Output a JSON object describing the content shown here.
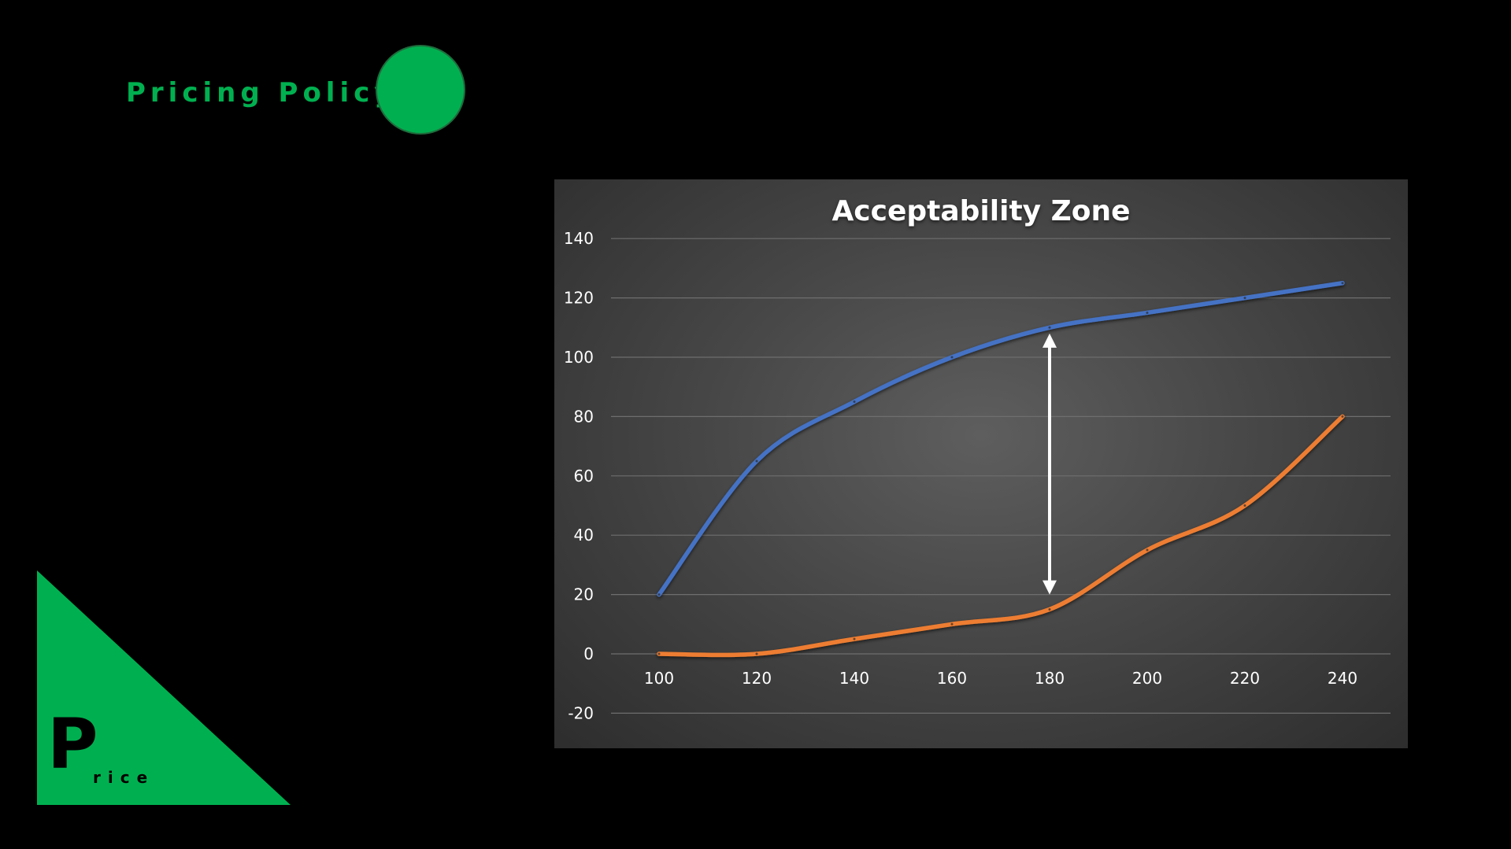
{
  "slide": {
    "title": "Pricing Policy",
    "logo_letter": "P",
    "logo_word": "rice"
  },
  "colors": {
    "accent_green": "#00B050",
    "series_blue": "#4472C4",
    "series_orange": "#ED7D31",
    "arrow": "#ffffff"
  },
  "chart_data": {
    "type": "line",
    "title": "Acceptability Zone",
    "x": [
      100,
      120,
      140,
      160,
      180,
      200,
      220,
      240
    ],
    "series": [
      {
        "values": [
          20,
          65,
          85,
          100,
          110,
          115,
          120,
          125
        ]
      },
      {
        "values": [
          0,
          0,
          5,
          10,
          15,
          35,
          50,
          80
        ]
      }
    ],
    "ylim": [
      -20,
      140
    ],
    "yticks": [
      -20,
      0,
      20,
      40,
      60,
      80,
      100,
      120,
      140
    ],
    "xticks": [
      100,
      120,
      140,
      160,
      180,
      200,
      220,
      240
    ],
    "grid": true,
    "smooth": true,
    "annotation": {
      "type": "double-arrow",
      "x": 180,
      "y_from": 20,
      "y_to": 108
    }
  }
}
